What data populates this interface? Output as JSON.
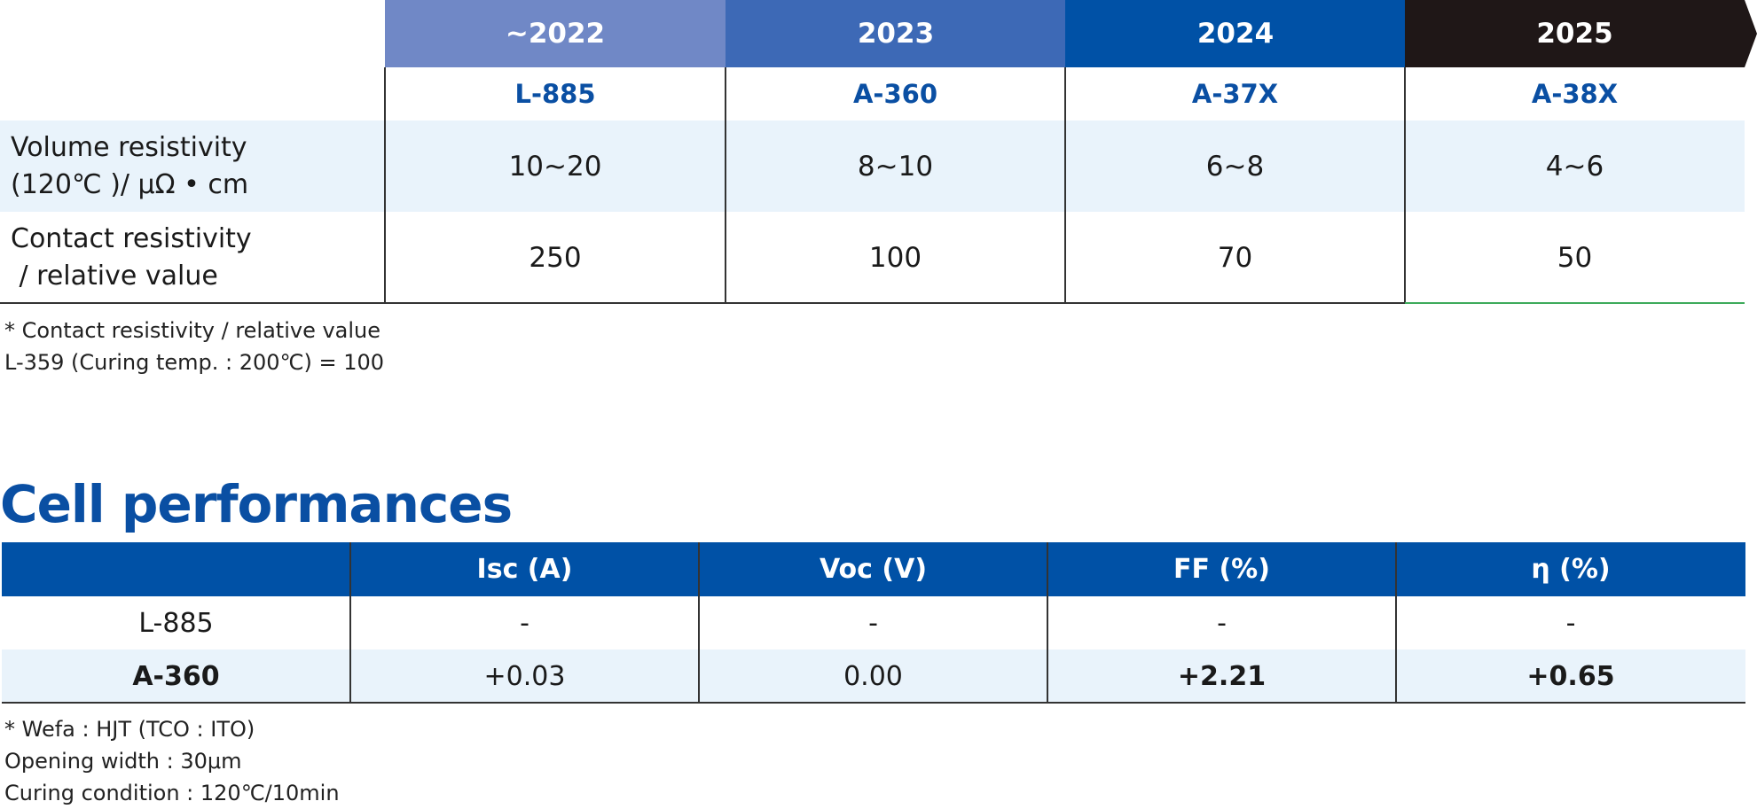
{
  "roadmap": {
    "years": [
      "~2022",
      "2023",
      "2024",
      "2025"
    ],
    "models": [
      "L-885",
      "A-360",
      "A-37X",
      "A-38X"
    ],
    "rows": [
      {
        "label_line1": "Volume resistivity",
        "label_line2": "(120℃ )/ μΩ • cm",
        "values": [
          "10~20",
          "8~10",
          "6~8",
          "4~6"
        ]
      },
      {
        "label_line1": "Contact resistivity",
        "label_line2": " / relative value",
        "values": [
          "250",
          "100",
          "70",
          "50"
        ]
      }
    ],
    "notes": [
      "* Contact resistivity / relative value",
      "L-359 (Curing temp. : 200℃) = 100"
    ]
  },
  "cell_performances": {
    "title": "Cell performances",
    "headers": [
      "",
      "Isc (A)",
      "Voc (V)",
      "FF (%)",
      "η (%)"
    ],
    "rows": [
      {
        "name": "L-885",
        "values": [
          "-",
          "-",
          "-",
          "-"
        ]
      },
      {
        "name": "A-360",
        "values": [
          "+0.03",
          "0.00",
          "+2.21",
          "+0.65"
        ]
      }
    ],
    "notes": [
      "* Wefa : HJT (TCO : ITO)",
      "Opening width : 30μm",
      "Curing condition : 120℃/10min"
    ]
  },
  "colors": {
    "arrow_2022": "#7088c6",
    "arrow_2023": "#3d69b6",
    "arrow_2024": "#0051a6",
    "arrow_2025": "#1f1717",
    "brand_blue": "#0a4fa3",
    "row_tint": "#e9f3fb"
  }
}
